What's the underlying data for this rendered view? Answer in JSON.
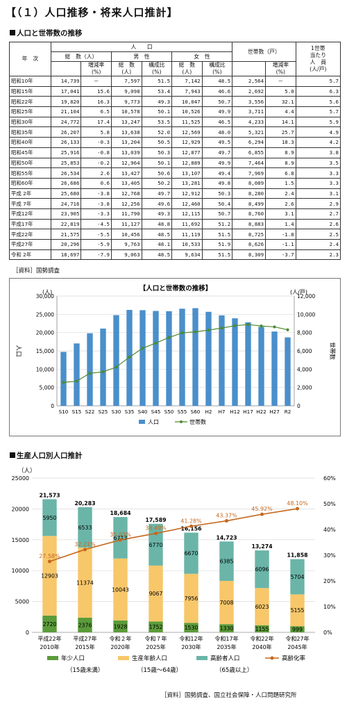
{
  "page_title": "【（１）人口推移・将来人口推計】",
  "section1_title": "人口と世帯数の推移",
  "table": {
    "h_year": "年　次",
    "h_population": "人　　口",
    "h_total": "総　数（人）",
    "h_male": "男　性",
    "h_female": "女　性",
    "h_households": "世帯数（戸）",
    "h_per_household": [
      "1世帯",
      "当たり",
      "人　員",
      "(人/戸)"
    ],
    "h_rate": [
      "増減率",
      "(%)"
    ],
    "h_count": [
      "総　数",
      "(人)"
    ],
    "h_ratio": [
      "構成比",
      "(%)"
    ],
    "rows": [
      [
        "昭和10年",
        "14,739",
        "－",
        "7,597",
        "51.5",
        "7,142",
        "48.5",
        "2,564",
        "－",
        "5.7"
      ],
      [
        "昭和15年",
        "17,041",
        "15.6",
        "9,098",
        "53.4",
        "7,943",
        "46.6",
        "2,692",
        "5.0",
        "6.3"
      ],
      [
        "昭和22年",
        "19,820",
        "16.3",
        "9,773",
        "49.3",
        "10,047",
        "50.7",
        "3,556",
        "32.1",
        "5.6"
      ],
      [
        "昭和25年",
        "21,104",
        "6.5",
        "10,578",
        "50.1",
        "10,526",
        "49.9",
        "3,711",
        "4.4",
        "5.7"
      ],
      [
        "昭和30年",
        "24,772",
        "17.4",
        "13,247",
        "53.5",
        "11,525",
        "46.5",
        "4,233",
        "14.1",
        "5.9"
      ],
      [
        "昭和35年",
        "26,207",
        "5.8",
        "13,638",
        "52.0",
        "12,569",
        "48.0",
        "5,321",
        "25.7",
        "4.9"
      ],
      [
        "昭和40年",
        "26,133",
        "-0.3",
        "13,204",
        "50.5",
        "12,929",
        "49.5",
        "6,294",
        "18.3",
        "4.2"
      ],
      [
        "昭和45年",
        "25,916",
        "-0.8",
        "13,039",
        "50.3",
        "12,877",
        "49.7",
        "6,855",
        "8.9",
        "3.8"
      ],
      [
        "昭和50年",
        "25,853",
        "-0.2",
        "12,964",
        "50.1",
        "12,889",
        "49.9",
        "7,464",
        "8.9",
        "3.5"
      ],
      [
        "昭和55年",
        "26,534",
        "2.6",
        "13,427",
        "50.6",
        "13,107",
        "49.4",
        "7,969",
        "6.8",
        "3.3"
      ],
      [
        "昭和60年",
        "26,686",
        "0.6",
        "13,405",
        "50.2",
        "13,281",
        "49.8",
        "8,089",
        "1.5",
        "3.3"
      ],
      [
        "平成 2年",
        "25,680",
        "-3.8",
        "12,768",
        "49.7",
        "12,912",
        "50.3",
        "8,280",
        "2.4",
        "3.1"
      ],
      [
        "平成 7年",
        "24,716",
        "-3.8",
        "12,256",
        "49.6",
        "12,460",
        "50.4",
        "8,499",
        "2.6",
        "2.9"
      ],
      [
        "平成12年",
        "23,905",
        "-3.3",
        "11,790",
        "49.3",
        "12,115",
        "50.7",
        "8,760",
        "3.1",
        "2.7"
      ],
      [
        "平成17年",
        "22,819",
        "-4.5",
        "11,127",
        "48.8",
        "11,692",
        "51.2",
        "8,883",
        "1.4",
        "2.6"
      ],
      [
        "平成22年",
        "21,575",
        "-5.5",
        "10,456",
        "48.5",
        "11,119",
        "51.5",
        "8,725",
        "-1.8",
        "2.5"
      ],
      [
        "平成27年",
        "20,296",
        "-5.9",
        "9,763",
        "48.1",
        "10,533",
        "51.9",
        "8,626",
        "-1.1",
        "2.4"
      ],
      [
        "令和 2年",
        "18,697",
        "-7.9",
        "9,063",
        "48.5",
        "9,634",
        "51.5",
        "8,309",
        "-3.7",
        "2.3"
      ]
    ]
  },
  "source1": "［資料］国勢調査",
  "section2_title": "生産人口別人口推計",
  "source2": "［資料］国勢調査、国立社会保障・人口問題研究所",
  "colors": {
    "bar1": "#4a8fcb",
    "line1": "#4d8a2e",
    "young": "#5b9b3a",
    "working": "#f7c76a",
    "elderly": "#6ab5a8",
    "aging": "#c5681e"
  },
  "chart_data": [
    {
      "type": "bar",
      "title": "【人口と世帯数の推移】",
      "categories": [
        "S10",
        "S15",
        "S22",
        "S25",
        "S30",
        "S35",
        "S40",
        "S45",
        "S50",
        "S55",
        "S60",
        "H2",
        "H7",
        "H12",
        "H17",
        "H22",
        "H27",
        "R2"
      ],
      "series": [
        {
          "name": "人口",
          "type": "bar",
          "axis": "left",
          "values": [
            14739,
            17041,
            19820,
            21104,
            24772,
            26207,
            26133,
            25916,
            25853,
            26534,
            26686,
            25680,
            24716,
            23905,
            22819,
            21575,
            20296,
            18697
          ]
        },
        {
          "name": "世帯数",
          "type": "line",
          "axis": "right",
          "values": [
            2564,
            2692,
            3556,
            3711,
            4233,
            5321,
            6294,
            6855,
            7464,
            7969,
            8089,
            8280,
            8499,
            8760,
            8883,
            8725,
            8626,
            8309
          ]
        }
      ],
      "ylabel": "人口",
      "ylabel_unit": "(人)",
      "y2label": "世帯数",
      "y2label_unit": "(人/戸)",
      "ylim": [
        0,
        30000
      ],
      "y2lim": [
        0,
        12000
      ],
      "y_ticks": [
        "0",
        "5,000",
        "10,000",
        "15,000",
        "20,000",
        "25,000",
        "30,000"
      ],
      "y2_ticks": [
        "0",
        "2,000",
        "4,000",
        "6,000",
        "8,000",
        "10,000",
        "12,000"
      ],
      "legend": "bottom"
    },
    {
      "type": "bar",
      "stacked": true,
      "categories": [
        "平成22年",
        "平成27年",
        "令和２年",
        "令和７年",
        "令和12年",
        "令和17年",
        "令和22年",
        "令和27年"
      ],
      "categories_sub": [
        "2010年",
        "2015年",
        "2020年",
        "2025年",
        "2030年",
        "2035年",
        "2040年",
        "2045年"
      ],
      "series": [
        {
          "name": "年少人口",
          "note": "（15歳未満）",
          "values": [
            2720,
            2376,
            1928,
            1752,
            1530,
            1330,
            1155,
            999
          ]
        },
        {
          "name": "生産年齢人口",
          "note": "（15歳～64歳）",
          "values": [
            12903,
            11374,
            10043,
            9067,
            7956,
            7008,
            6023,
            5155
          ]
        },
        {
          "name": "高齢者人口",
          "note": "（65歳以上）",
          "values": [
            5950,
            6533,
            6713,
            6770,
            6670,
            6385,
            6096,
            5704
          ]
        },
        {
          "name": "高齢化率",
          "type": "line",
          "axis": "right",
          "values": [
            27.58,
            32.21,
            35.93,
            38.49,
            41.28,
            43.37,
            45.92,
            48.1
          ]
        }
      ],
      "totals": [
        "21,573",
        "20,283",
        "18,684",
        "17,589",
        "16,156",
        "14,723",
        "13,274",
        "11,858"
      ],
      "rate_labels": [
        "27.58%",
        "32.21%",
        "35.93%",
        "38.49%",
        "41.28%",
        "43.37%",
        "45.92%",
        "48.10%"
      ],
      "ylabel_unit": "（人）",
      "ylim": [
        0,
        25000
      ],
      "y2lim": [
        0,
        60
      ],
      "y_ticks": [
        "0",
        "5000",
        "10000",
        "15000",
        "20000",
        "25000"
      ],
      "y2_ticks": [
        "0%",
        "10%",
        "20%",
        "30%",
        "40%",
        "50%",
        "60%"
      ],
      "legend": "bottom"
    }
  ]
}
